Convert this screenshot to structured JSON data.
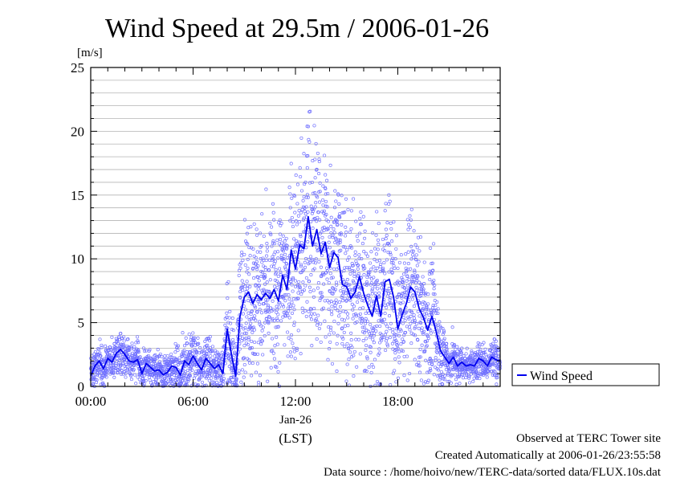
{
  "chart_data": {
    "type": "scatter",
    "title": "Wind Speed at 29.5m / 2006-01-26",
    "ylabel": "[m/s]",
    "xlabel": "(LST)",
    "date_label": "Jan-26",
    "ylim": [
      0,
      25
    ],
    "xlim": [
      0,
      24
    ],
    "x_unit": "hours",
    "y_ticks": [
      0,
      5,
      10,
      15,
      20,
      25
    ],
    "x_ticks": [
      {
        "value": 0,
        "label": "00:00"
      },
      {
        "value": 6,
        "label": "06:00"
      },
      {
        "value": 12,
        "label": "12:00"
      },
      {
        "value": 18,
        "label": "18:00"
      }
    ],
    "grid": "horizontal",
    "legend": {
      "position": "right",
      "label": "Wind Speed"
    },
    "series": [
      {
        "name": "Wind Speed",
        "color": "#0000ee",
        "marker": "open-circle",
        "line_points": [
          [
            0.0,
            0.8
          ],
          [
            0.25,
            1.6
          ],
          [
            0.5,
            2.0
          ],
          [
            0.75,
            1.4
          ],
          [
            1.0,
            2.2
          ],
          [
            1.25,
            1.9
          ],
          [
            1.5,
            2.6
          ],
          [
            1.75,
            2.9
          ],
          [
            2.0,
            2.5
          ],
          [
            2.25,
            2.0
          ],
          [
            2.5,
            1.9
          ],
          [
            2.75,
            2.1
          ],
          [
            3.0,
            1.0
          ],
          [
            3.25,
            1.8
          ],
          [
            3.5,
            1.5
          ],
          [
            3.75,
            1.2
          ],
          [
            4.0,
            1.3
          ],
          [
            4.25,
            0.9
          ],
          [
            4.5,
            1.1
          ],
          [
            4.75,
            1.6
          ],
          [
            5.0,
            1.5
          ],
          [
            5.25,
            0.9
          ],
          [
            5.5,
            2.0
          ],
          [
            5.75,
            1.7
          ],
          [
            6.0,
            2.4
          ],
          [
            6.25,
            1.8
          ],
          [
            6.5,
            1.3
          ],
          [
            6.75,
            2.2
          ],
          [
            7.0,
            1.8
          ],
          [
            7.25,
            1.4
          ],
          [
            7.5,
            1.7
          ],
          [
            7.75,
            1.0
          ],
          [
            8.0,
            4.5
          ],
          [
            8.25,
            2.5
          ],
          [
            8.5,
            0.8
          ],
          [
            8.75,
            5.5
          ],
          [
            9.0,
            7.0
          ],
          [
            9.25,
            7.4
          ],
          [
            9.5,
            6.5
          ],
          [
            9.75,
            7.2
          ],
          [
            10.0,
            6.8
          ],
          [
            10.25,
            7.3
          ],
          [
            10.5,
            6.9
          ],
          [
            10.75,
            7.6
          ],
          [
            11.0,
            6.7
          ],
          [
            11.25,
            8.7
          ],
          [
            11.5,
            7.6
          ],
          [
            11.75,
            10.7
          ],
          [
            12.0,
            9.2
          ],
          [
            12.25,
            11.1
          ],
          [
            12.5,
            10.8
          ],
          [
            12.75,
            13.3
          ],
          [
            13.0,
            11.0
          ],
          [
            13.25,
            12.3
          ],
          [
            13.5,
            10.4
          ],
          [
            13.75,
            11.3
          ],
          [
            14.0,
            9.3
          ],
          [
            14.25,
            10.5
          ],
          [
            14.5,
            10.1
          ],
          [
            14.75,
            8.0
          ],
          [
            15.0,
            7.8
          ],
          [
            15.25,
            6.9
          ],
          [
            15.5,
            7.4
          ],
          [
            15.75,
            8.6
          ],
          [
            16.0,
            7.3
          ],
          [
            16.25,
            6.3
          ],
          [
            16.5,
            5.5
          ],
          [
            16.75,
            7.1
          ],
          [
            17.0,
            5.5
          ],
          [
            17.25,
            8.2
          ],
          [
            17.5,
            8.4
          ],
          [
            17.75,
            7.0
          ],
          [
            18.0,
            4.5
          ],
          [
            18.25,
            5.6
          ],
          [
            18.5,
            6.5
          ],
          [
            18.75,
            7.8
          ],
          [
            19.0,
            7.4
          ],
          [
            19.25,
            6.1
          ],
          [
            19.5,
            5.4
          ],
          [
            19.75,
            4.4
          ],
          [
            20.0,
            5.5
          ],
          [
            20.25,
            4.3
          ],
          [
            20.5,
            2.8
          ],
          [
            20.75,
            2.3
          ],
          [
            21.0,
            1.8
          ],
          [
            21.25,
            2.3
          ],
          [
            21.5,
            1.6
          ],
          [
            21.75,
            1.9
          ],
          [
            22.0,
            1.6
          ],
          [
            22.25,
            1.7
          ],
          [
            22.5,
            1.6
          ],
          [
            22.75,
            2.2
          ],
          [
            23.0,
            2.0
          ],
          [
            23.25,
            1.6
          ],
          [
            23.5,
            2.3
          ],
          [
            23.75,
            2.1
          ],
          [
            24.0,
            2.0
          ]
        ],
        "scatter_spread": [
          [
            0.0,
            0.6
          ],
          [
            0.25,
            0.7
          ],
          [
            0.5,
            0.8
          ],
          [
            0.75,
            0.7
          ],
          [
            1.0,
            0.7
          ],
          [
            1.25,
            0.7
          ],
          [
            1.5,
            0.8
          ],
          [
            1.75,
            0.8
          ],
          [
            2.0,
            0.8
          ],
          [
            2.25,
            0.7
          ],
          [
            2.5,
            0.7
          ],
          [
            2.75,
            0.7
          ],
          [
            3.0,
            0.7
          ],
          [
            3.25,
            0.7
          ],
          [
            3.5,
            0.7
          ],
          [
            3.75,
            0.7
          ],
          [
            4.0,
            0.7
          ],
          [
            4.25,
            0.7
          ],
          [
            4.5,
            0.7
          ],
          [
            4.75,
            0.8
          ],
          [
            5.0,
            0.8
          ],
          [
            5.25,
            0.8
          ],
          [
            5.5,
            1.2
          ],
          [
            5.75,
            1.0
          ],
          [
            6.0,
            1.2
          ],
          [
            6.25,
            1.0
          ],
          [
            6.5,
            0.8
          ],
          [
            6.75,
            1.0
          ],
          [
            7.0,
            0.9
          ],
          [
            7.25,
            0.8
          ],
          [
            7.5,
            0.9
          ],
          [
            7.75,
            0.8
          ],
          [
            8.0,
            2.0
          ],
          [
            8.25,
            1.6
          ],
          [
            8.5,
            1.0
          ],
          [
            8.75,
            2.5
          ],
          [
            9.0,
            3.0
          ],
          [
            9.25,
            3.0
          ],
          [
            9.5,
            3.0
          ],
          [
            9.75,
            3.0
          ],
          [
            10.0,
            3.0
          ],
          [
            10.25,
            3.0
          ],
          [
            10.5,
            3.0
          ],
          [
            10.75,
            3.2
          ],
          [
            11.0,
            3.2
          ],
          [
            11.25,
            3.5
          ],
          [
            11.5,
            3.5
          ],
          [
            11.75,
            3.8
          ],
          [
            12.0,
            4.0
          ],
          [
            12.25,
            4.2
          ],
          [
            12.5,
            4.2
          ],
          [
            12.75,
            4.5
          ],
          [
            13.0,
            4.2
          ],
          [
            13.25,
            4.2
          ],
          [
            13.5,
            4.0
          ],
          [
            13.75,
            4.0
          ],
          [
            14.0,
            3.8
          ],
          [
            14.25,
            3.8
          ],
          [
            14.5,
            3.6
          ],
          [
            14.75,
            3.4
          ],
          [
            15.0,
            3.2
          ],
          [
            15.25,
            3.2
          ],
          [
            15.5,
            3.2
          ],
          [
            15.75,
            3.2
          ],
          [
            16.0,
            3.2
          ],
          [
            16.25,
            3.0
          ],
          [
            16.5,
            3.0
          ],
          [
            16.75,
            3.0
          ],
          [
            17.0,
            3.0
          ],
          [
            17.25,
            3.2
          ],
          [
            17.5,
            3.2
          ],
          [
            17.75,
            3.0
          ],
          [
            18.0,
            2.8
          ],
          [
            18.25,
            2.8
          ],
          [
            18.5,
            2.8
          ],
          [
            18.75,
            2.8
          ],
          [
            19.0,
            2.8
          ],
          [
            19.25,
            2.6
          ],
          [
            19.5,
            2.6
          ],
          [
            19.75,
            2.4
          ],
          [
            20.0,
            2.4
          ],
          [
            20.25,
            2.2
          ],
          [
            20.5,
            1.4
          ],
          [
            20.75,
            1.2
          ],
          [
            21.0,
            0.9
          ],
          [
            21.25,
            0.9
          ],
          [
            21.5,
            0.7
          ],
          [
            21.75,
            0.7
          ],
          [
            22.0,
            0.6
          ],
          [
            22.25,
            0.6
          ],
          [
            22.5,
            0.6
          ],
          [
            22.75,
            0.7
          ],
          [
            23.0,
            0.7
          ],
          [
            23.25,
            0.6
          ],
          [
            23.5,
            0.8
          ],
          [
            23.75,
            0.8
          ],
          [
            24.0,
            0.8
          ]
        ],
        "scatter_count": 3200
      }
    ]
  },
  "footer": {
    "line1": "Observed at TERC Tower site",
    "line2": "Created Automatically at 2006-01-26/23:55:58",
    "line3": "Data source : /home/hoivo/new/TERC-data/sorted  data/FLUX.10s.dat"
  }
}
